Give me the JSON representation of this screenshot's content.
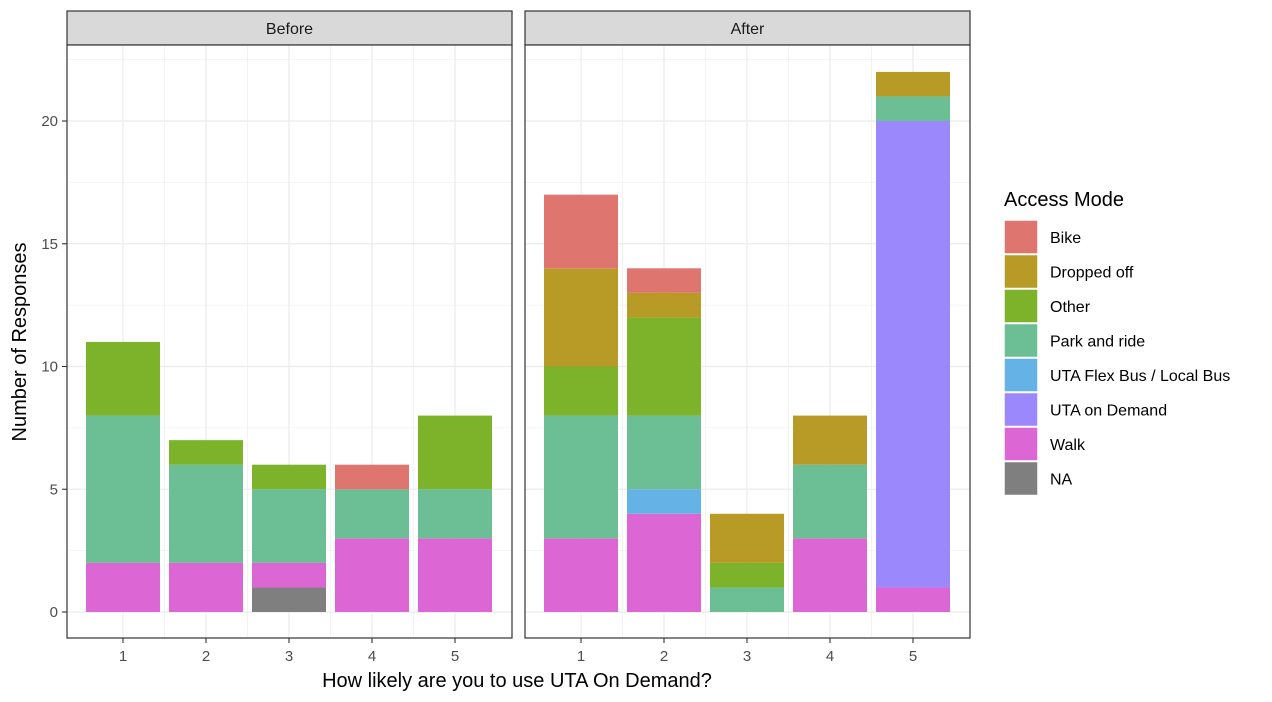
{
  "chart_data": {
    "type": "bar",
    "stacked": true,
    "xlabel": "How likely are you to use UTA On Demand?",
    "ylabel": "Number of Responses",
    "ylim": [
      0,
      22
    ],
    "yticks": [
      0,
      5,
      10,
      15,
      20
    ],
    "categories": [
      "1",
      "2",
      "3",
      "4",
      "5"
    ],
    "legend": {
      "title": "Access Mode",
      "position": "right",
      "entries": [
        {
          "name": "Bike",
          "color": "#DE756E"
        },
        {
          "name": "Dropped off",
          "color": "#B89A27"
        },
        {
          "name": "Other",
          "color": "#7CB32B"
        },
        {
          "name": "Park and ride",
          "color": "#6CBF94"
        },
        {
          "name": "UTA Flex Bus / Local Bus",
          "color": "#64B2E6"
        },
        {
          "name": "UTA on Demand",
          "color": "#9A88FC"
        },
        {
          "name": "Walk",
          "color": "#DC67D4"
        },
        {
          "name": "NA",
          "color": "#7F7F7F"
        }
      ]
    },
    "grid": true,
    "panels": [
      {
        "title": "Before",
        "bars": [
          {
            "x": "1",
            "segments": {
              "Walk": 2,
              "Park and ride": 6,
              "Other": 3
            }
          },
          {
            "x": "2",
            "segments": {
              "Walk": 2,
              "Park and ride": 4,
              "Other": 1
            }
          },
          {
            "x": "3",
            "segments": {
              "NA": 1,
              "Walk": 1,
              "Park and ride": 3,
              "Other": 1
            }
          },
          {
            "x": "4",
            "segments": {
              "Walk": 3,
              "Park and ride": 2,
              "Bike": 1
            }
          },
          {
            "x": "5",
            "segments": {
              "Walk": 3,
              "Park and ride": 2,
              "Other": 3
            }
          }
        ]
      },
      {
        "title": "After",
        "bars": [
          {
            "x": "1",
            "segments": {
              "Walk": 3,
              "Park and ride": 5,
              "Other": 2,
              "Dropped off": 4,
              "Bike": 3
            }
          },
          {
            "x": "2",
            "segments": {
              "Walk": 4,
              "UTA Flex Bus / Local Bus": 1,
              "Park and ride": 3,
              "Other": 4,
              "Dropped off": 1,
              "Bike": 1
            }
          },
          {
            "x": "3",
            "segments": {
              "Park and ride": 1,
              "Other": 1,
              "Dropped off": 2
            }
          },
          {
            "x": "4",
            "segments": {
              "Walk": 3,
              "Park and ride": 3,
              "Dropped off": 2
            }
          },
          {
            "x": "5",
            "segments": {
              "Walk": 1,
              "UTA on Demand": 19,
              "Park and ride": 1,
              "Dropped off": 1
            }
          }
        ]
      }
    ]
  }
}
